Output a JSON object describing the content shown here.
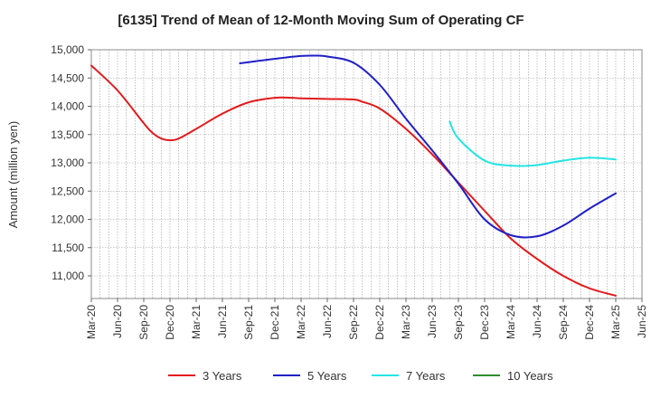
{
  "chart_data": {
    "type": "line",
    "title": "[6135]  Trend of Mean of 12-Month Moving Sum of Operating CF",
    "xlabel": "",
    "ylabel": "Amount (million yen)",
    "ylim": [
      10600,
      15000
    ],
    "yticks": [
      11000,
      11500,
      12000,
      12500,
      13000,
      13500,
      14000,
      14500,
      15000
    ],
    "ytick_labels": [
      "11,000",
      "11,500",
      "12,000",
      "12,500",
      "13,000",
      "13,500",
      "14,000",
      "14,500",
      "15,000"
    ],
    "x_range_months": [
      "Mar-20",
      "Jun-25"
    ],
    "xtick_labels": [
      "Mar-20",
      "Jun-20",
      "Sep-20",
      "Dec-20",
      "Mar-21",
      "Jun-21",
      "Sep-21",
      "Dec-21",
      "Mar-22",
      "Jun-22",
      "Sep-22",
      "Dec-22",
      "Mar-23",
      "Jun-23",
      "Sep-23",
      "Dec-23",
      "Mar-24",
      "Jun-24",
      "Sep-24",
      "Dec-24",
      "Mar-25",
      "Jun-25"
    ],
    "grid": true,
    "legend_position": "bottom",
    "series": [
      {
        "name": "3 Years",
        "color": "#e31a1c",
        "x": [
          "Mar-20",
          "Jun-20",
          "Sep-20",
          "Oct-20",
          "Nov-20",
          "Dec-20",
          "Jan-21",
          "Mar-21",
          "Jun-21",
          "Sep-21",
          "Dec-21",
          "Feb-22",
          "Mar-22",
          "Jun-22",
          "Sep-22",
          "Oct-22",
          "Dec-22",
          "Mar-23",
          "Jun-23",
          "Sep-23",
          "Dec-23",
          "Mar-24",
          "Jun-24",
          "Sep-24",
          "Dec-24",
          "Mar-25"
        ],
        "values": [
          14720,
          14280,
          13700,
          13530,
          13430,
          13400,
          13430,
          13600,
          13870,
          14070,
          14150,
          14150,
          14140,
          14130,
          14120,
          14080,
          13960,
          13600,
          13150,
          12650,
          12150,
          11660,
          11300,
          11000,
          10780,
          10650
        ]
      },
      {
        "name": "5 Years",
        "color": "#1f1fc8",
        "x": [
          "Aug-21",
          "Sep-21",
          "Dec-21",
          "Mar-22",
          "May-22",
          "Jun-22",
          "Sep-22",
          "Dec-22",
          "Mar-23",
          "Jun-23",
          "Sep-23",
          "Dec-23",
          "Mar-24",
          "Jun-24",
          "Sep-24",
          "Dec-24",
          "Mar-25"
        ],
        "values": [
          14760,
          14780,
          14840,
          14890,
          14895,
          14880,
          14770,
          14380,
          13780,
          13220,
          12630,
          12000,
          11720,
          11700,
          11890,
          12190,
          12460
        ]
      },
      {
        "name": "7 Years",
        "color": "#22e5e5",
        "x": [
          "Aug-23",
          "Sep-23",
          "Dec-23",
          "Mar-24",
          "Jun-24",
          "Sep-24",
          "Dec-24",
          "Mar-25"
        ],
        "values": [
          13730,
          13430,
          13040,
          12950,
          12960,
          13040,
          13090,
          13060
        ]
      },
      {
        "name": "10 Years",
        "color": "#2e8b2e",
        "x": [],
        "values": []
      }
    ]
  }
}
